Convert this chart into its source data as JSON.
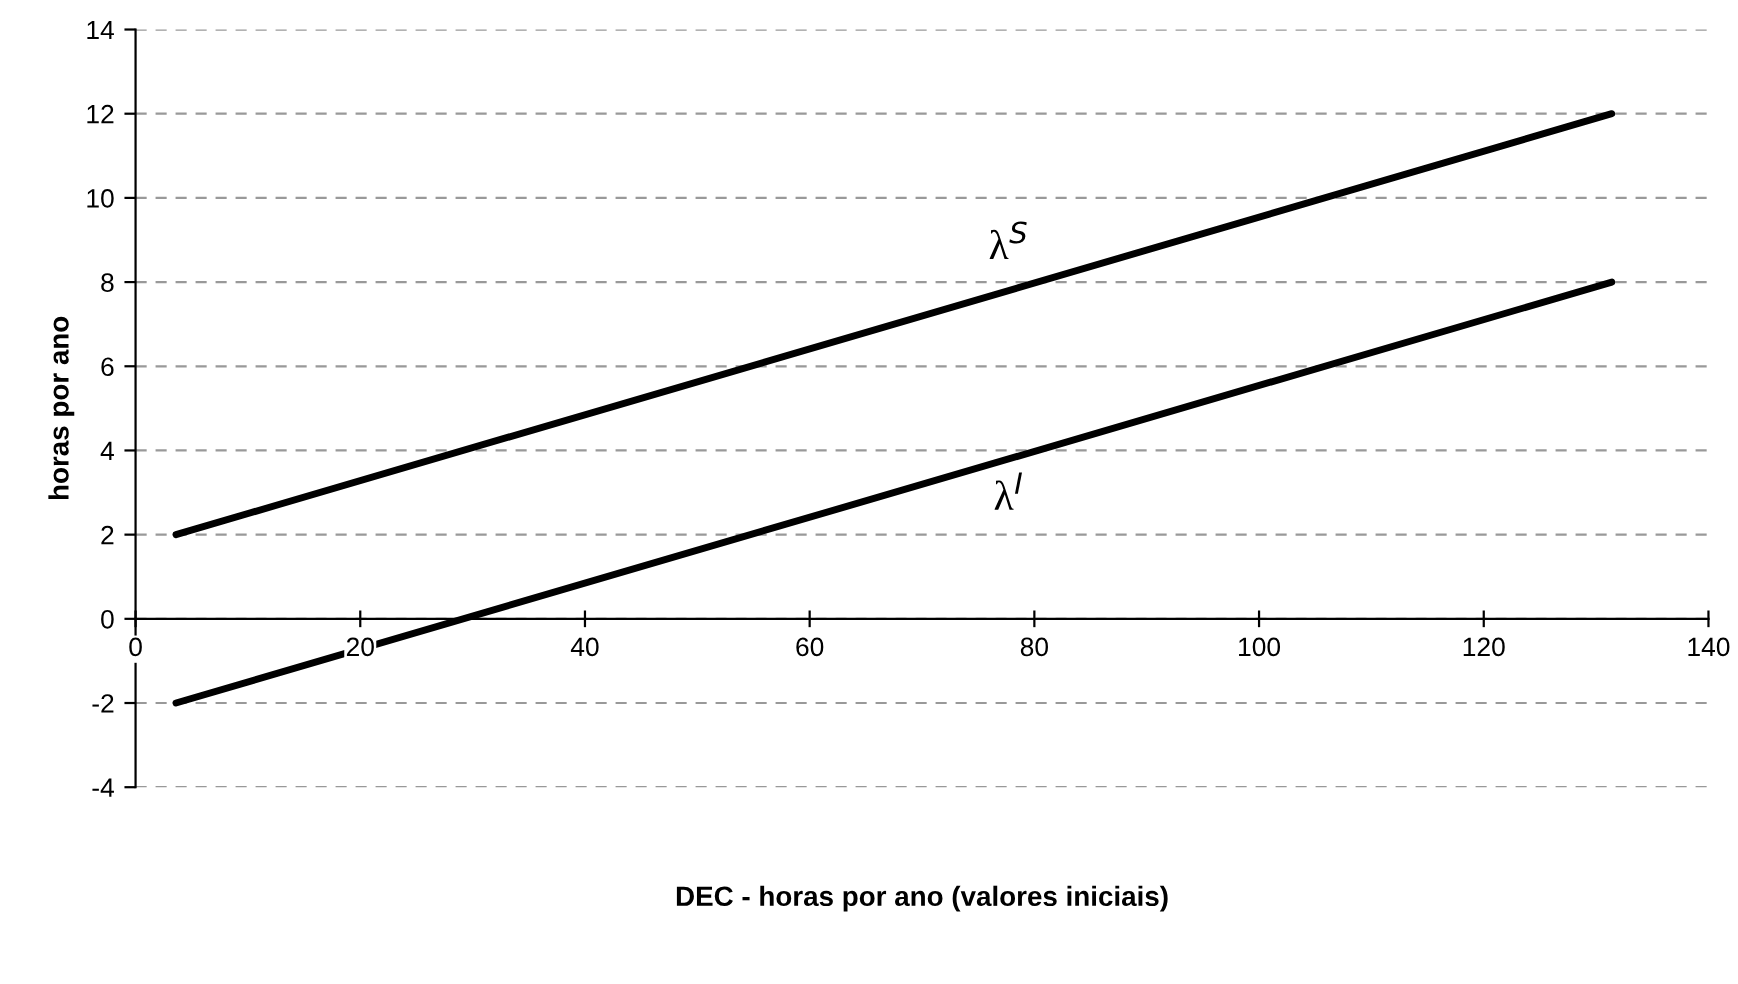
{
  "chart_data": {
    "type": "line",
    "xlabel": "DEC - horas por ano (valores iniciais)",
    "ylabel": "horas por ano",
    "series": [
      {
        "color": "#000000",
        "values": [
          2,
          12
        ]
      },
      {
        "color": "#000000",
        "values": [
          -2,
          8
        ]
      }
    ],
    "x": [
      3.6,
      131.4
    ],
    "xlim": [
      0,
      140
    ],
    "xticks": [
      0,
      20,
      40,
      60,
      80,
      100,
      120,
      140
    ],
    "ylim": [
      -4,
      14
    ],
    "yticks": [
      -4,
      -2,
      0,
      2,
      4,
      6,
      8,
      10,
      12,
      14
    ],
    "grid": "y",
    "legend": false,
    "marker": "none",
    "line_style": "solid",
    "annotations": [
      "λ$^{S}$",
      "λ$^{I}$"
    ]
  }
}
